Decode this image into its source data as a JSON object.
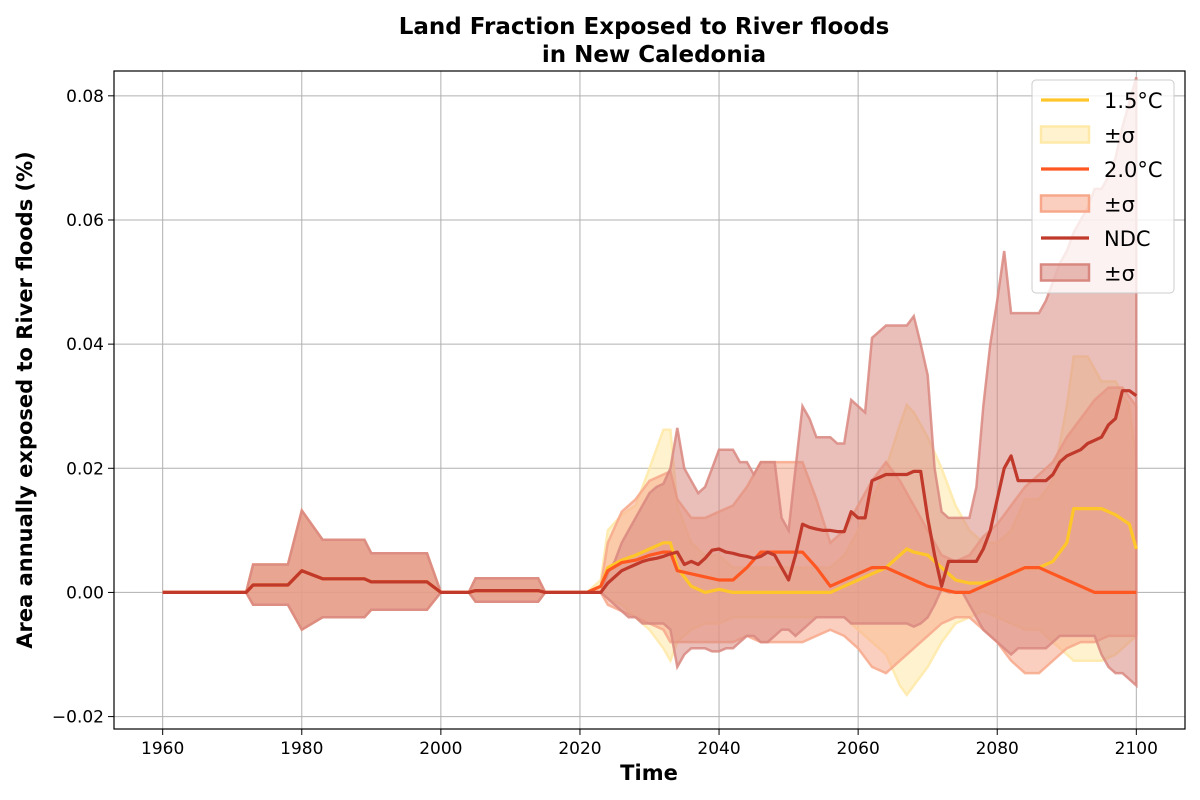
{
  "chart_data": {
    "type": "line",
    "title_line1": "Land Fraction Exposed to River floods",
    "title_line2": "in New Caledonia",
    "xlabel": "Time",
    "ylabel": "Area annually exposed to River floods (%)",
    "xlim": [
      1953,
      2107
    ],
    "ylim": [
      -0.022,
      0.084
    ],
    "x_ticks": [
      1960,
      1980,
      2000,
      2020,
      2040,
      2060,
      2080,
      2100
    ],
    "x_tick_labels": [
      "1960",
      "1980",
      "2000",
      "2020",
      "2040",
      "2060",
      "2080",
      "2100"
    ],
    "y_ticks": [
      -0.02,
      0,
      0.02,
      0.04,
      0.06,
      0.08
    ],
    "y_tick_labels": [
      "−0.02",
      "0.00",
      "0.02",
      "0.04",
      "0.06",
      "0.08"
    ],
    "grid": true,
    "legend_position": "top-right",
    "series": [
      {
        "name": "1.5°C",
        "band_label": "±σ",
        "color": "#FFC629",
        "band_color": "#FFE9A8",
        "x": [
          1960,
          1972,
          1973,
          1978,
          1980,
          1983,
          1989,
          1990,
          1998,
          2000,
          2004,
          2005,
          2014,
          2015,
          2021,
          2023,
          2024,
          2026,
          2028,
          2030,
          2032,
          2033,
          2034,
          2036,
          2038,
          2040,
          2042,
          2044,
          2046,
          2048,
          2050,
          2052,
          2054,
          2056,
          2058,
          2060,
          2062,
          2064,
          2066,
          2067,
          2068,
          2070,
          2072,
          2074,
          2076,
          2078,
          2080,
          2082,
          2084,
          2086,
          2088,
          2090,
          2091,
          2093,
          2095,
          2097,
          2099,
          2100
        ],
        "y": [
          0,
          0,
          0.0012,
          0.0012,
          0.0035,
          0.0022,
          0.0022,
          0.0017,
          0.0017,
          0,
          0,
          0.0003,
          0.0003,
          0,
          0,
          0.001,
          0.004,
          0.0052,
          0.006,
          0.007,
          0.008,
          0.008,
          0.004,
          0.001,
          0,
          0.0005,
          0,
          0,
          0,
          0,
          0,
          0,
          0,
          0,
          0.001,
          0.002,
          0.003,
          0.004,
          0.006,
          0.007,
          0.0065,
          0.006,
          0.004,
          0.002,
          0.0015,
          0.0015,
          0.002,
          0.003,
          0.004,
          0.004,
          0.005,
          0.008,
          0.0135,
          0.0135,
          0.0135,
          0.0125,
          0.011,
          0.007
        ],
        "upper": [
          0,
          0,
          0.0045,
          0.0045,
          0.0132,
          0.0085,
          0.0085,
          0.0063,
          0.0063,
          0,
          0,
          0.0023,
          0.0023,
          0,
          0,
          0.002,
          0.01,
          0.0125,
          0.014,
          0.02,
          0.0262,
          0.0262,
          0.014,
          0.008,
          0.006,
          0.006,
          0.004,
          0.004,
          0.004,
          0.004,
          0.004,
          0.004,
          0.004,
          0.004,
          0.006,
          0.01,
          0.015,
          0.02,
          0.027,
          0.0302,
          0.029,
          0.025,
          0.02,
          0.014,
          0.01,
          0.008,
          0.008,
          0.01,
          0.015,
          0.015,
          0.018,
          0.03,
          0.038,
          0.038,
          0.034,
          0.034,
          0.03,
          0.021
        ],
        "lower": [
          0,
          0,
          -0.002,
          -0.002,
          -0.006,
          -0.004,
          -0.004,
          -0.0028,
          -0.0028,
          0,
          0,
          -0.0015,
          -0.0015,
          0,
          0,
          0,
          -0.001,
          -0.002,
          -0.004,
          -0.006,
          -0.009,
          -0.011,
          -0.008,
          -0.006,
          -0.005,
          -0.005,
          -0.004,
          -0.004,
          -0.004,
          -0.004,
          -0.004,
          -0.004,
          -0.004,
          -0.004,
          -0.004,
          -0.006,
          -0.008,
          -0.01,
          -0.015,
          -0.0165,
          -0.015,
          -0.012,
          -0.008,
          -0.005,
          -0.004,
          -0.003,
          -0.004,
          -0.005,
          -0.006,
          -0.006,
          -0.008,
          -0.01,
          -0.011,
          -0.011,
          -0.011,
          -0.01,
          -0.008,
          -0.007
        ]
      },
      {
        "name": "2.0°C",
        "band_label": "±σ",
        "color": "#FF5722",
        "band_color": "#F7A88B",
        "x": [
          1960,
          1972,
          1973,
          1978,
          1980,
          1983,
          1989,
          1990,
          1998,
          2000,
          2004,
          2005,
          2014,
          2015,
          2021,
          2023,
          2024,
          2026,
          2028,
          2030,
          2032,
          2033,
          2034,
          2036,
          2038,
          2040,
          2042,
          2044,
          2046,
          2048,
          2050,
          2052,
          2054,
          2056,
          2058,
          2060,
          2062,
          2064,
          2066,
          2068,
          2070,
          2072,
          2074,
          2076,
          2078,
          2080,
          2082,
          2084,
          2086,
          2088,
          2090,
          2092,
          2094,
          2096,
          2098,
          2100
        ],
        "y": [
          0,
          0,
          0.0012,
          0.0012,
          0.0035,
          0.0022,
          0.0022,
          0.0017,
          0.0017,
          0,
          0,
          0.0003,
          0.0003,
          0,
          0,
          0.001,
          0.0035,
          0.0048,
          0.0052,
          0.006,
          0.0065,
          0.0065,
          0.0035,
          0.003,
          0.0025,
          0.002,
          0.002,
          0.004,
          0.0065,
          0.0065,
          0.0065,
          0.0065,
          0.004,
          0.001,
          0.002,
          0.003,
          0.004,
          0.004,
          0.003,
          0.002,
          0.001,
          0.0005,
          0,
          0,
          0.001,
          0.002,
          0.003,
          0.004,
          0.004,
          0.003,
          0.002,
          0.001,
          0,
          0,
          0,
          0
        ],
        "upper": [
          0,
          0,
          0.0045,
          0.0045,
          0.0132,
          0.0085,
          0.0085,
          0.0063,
          0.0063,
          0,
          0,
          0.0023,
          0.0023,
          0,
          0,
          0.001,
          0.008,
          0.013,
          0.015,
          0.018,
          0.019,
          0.0195,
          0.015,
          0.012,
          0.012,
          0.013,
          0.014,
          0.017,
          0.021,
          0.021,
          0.021,
          0.021,
          0.015,
          0.008,
          0.01,
          0.014,
          0.018,
          0.021,
          0.018,
          0.014,
          0.01,
          0.006,
          0.005,
          0.006,
          0.009,
          0.011,
          0.014,
          0.017,
          0.019,
          0.021,
          0.025,
          0.028,
          0.031,
          0.033,
          0.033,
          0.03
        ],
        "lower": [
          0,
          0,
          -0.002,
          -0.002,
          -0.006,
          -0.004,
          -0.004,
          -0.0028,
          -0.0028,
          0,
          0,
          -0.0015,
          -0.0015,
          0,
          0,
          0,
          -0.002,
          -0.003,
          -0.004,
          -0.005,
          -0.006,
          -0.008,
          -0.008,
          -0.008,
          -0.008,
          -0.008,
          -0.008,
          -0.007,
          -0.008,
          -0.008,
          -0.008,
          -0.008,
          -0.007,
          -0.006,
          -0.007,
          -0.009,
          -0.012,
          -0.013,
          -0.011,
          -0.009,
          -0.007,
          -0.005,
          -0.004,
          -0.004,
          -0.006,
          -0.008,
          -0.011,
          -0.013,
          -0.013,
          -0.011,
          -0.009,
          -0.008,
          -0.008,
          -0.007,
          -0.007,
          -0.007
        ]
      },
      {
        "name": "NDC",
        "band_label": "±σ",
        "color": "#C0392B",
        "band_color": "#D98880",
        "x": [
          1960,
          1972,
          1973,
          1978,
          1980,
          1983,
          1989,
          1990,
          1998,
          2000,
          2004,
          2005,
          2014,
          2015,
          2021,
          2023,
          2024,
          2025,
          2026,
          2027,
          2028,
          2029,
          2030,
          2031,
          2032,
          2033,
          2034,
          2035,
          2036,
          2037,
          2038,
          2039,
          2040,
          2041,
          2042,
          2043,
          2044,
          2045,
          2046,
          2047,
          2048,
          2049,
          2050,
          2051,
          2052,
          2053,
          2054,
          2055,
          2056,
          2057,
          2058,
          2059,
          2060,
          2061,
          2062,
          2063,
          2064,
          2065,
          2066,
          2067,
          2068,
          2069,
          2070,
          2071,
          2072,
          2073,
          2074,
          2075,
          2076,
          2077,
          2078,
          2079,
          2080,
          2081,
          2082,
          2083,
          2084,
          2085,
          2086,
          2087,
          2088,
          2089,
          2090,
          2091,
          2092,
          2093,
          2094,
          2095,
          2096,
          2097,
          2098,
          2099,
          2100
        ],
        "y": [
          0,
          0,
          0.0012,
          0.0012,
          0.0035,
          0.0022,
          0.0022,
          0.0017,
          0.0017,
          0,
          0,
          0.0003,
          0.0003,
          0,
          0,
          0,
          0.0015,
          0.0025,
          0.0035,
          0.004,
          0.0045,
          0.005,
          0.0053,
          0.0055,
          0.0058,
          0.0062,
          0.0065,
          0.0045,
          0.005,
          0.0045,
          0.0055,
          0.0068,
          0.007,
          0.0065,
          0.0063,
          0.006,
          0.0058,
          0.0055,
          0.0058,
          0.0065,
          0.006,
          0.004,
          0.002,
          0.006,
          0.011,
          0.0105,
          0.0102,
          0.01,
          0.01,
          0.0098,
          0.0098,
          0.013,
          0.012,
          0.012,
          0.018,
          0.0185,
          0.019,
          0.019,
          0.019,
          0.019,
          0.0195,
          0.0195,
          0.012,
          0.006,
          0.001,
          0.005,
          0.005,
          0.005,
          0.005,
          0.005,
          0.007,
          0.01,
          0.015,
          0.02,
          0.022,
          0.018,
          0.018,
          0.018,
          0.018,
          0.018,
          0.019,
          0.021,
          0.022,
          0.0225,
          0.023,
          0.024,
          0.0245,
          0.025,
          0.027,
          0.028,
          0.0325,
          0.0325,
          0.0317
        ],
        "upper": [
          0,
          0,
          0.0045,
          0.0045,
          0.0132,
          0.0085,
          0.0085,
          0.0063,
          0.0063,
          0,
          0,
          0.0023,
          0.0023,
          0,
          0,
          0,
          0.003,
          0.005,
          0.008,
          0.01,
          0.012,
          0.014,
          0.016,
          0.017,
          0.0175,
          0.02,
          0.0265,
          0.02,
          0.018,
          0.016,
          0.017,
          0.02,
          0.023,
          0.023,
          0.023,
          0.021,
          0.021,
          0.019,
          0.021,
          0.021,
          0.021,
          0.012,
          0.01,
          0.02,
          0.03,
          0.028,
          0.025,
          0.025,
          0.025,
          0.024,
          0.024,
          0.031,
          0.03,
          0.029,
          0.041,
          0.042,
          0.043,
          0.043,
          0.043,
          0.043,
          0.0445,
          0.04,
          0.035,
          0.02,
          0.013,
          0.012,
          0.012,
          0.012,
          0.012,
          0.017,
          0.03,
          0.04,
          0.047,
          0.055,
          0.045,
          0.045,
          0.045,
          0.045,
          0.045,
          0.047,
          0.05,
          0.053,
          0.055,
          0.058,
          0.06,
          0.062,
          0.065,
          0.065,
          0.067,
          0.07,
          0.075,
          0.079,
          0.083
        ],
        "lower": [
          0,
          0,
          -0.002,
          -0.002,
          -0.006,
          -0.004,
          -0.004,
          -0.0028,
          -0.0028,
          0,
          0,
          -0.0015,
          -0.0015,
          0,
          0,
          0,
          -0.001,
          -0.002,
          -0.003,
          -0.004,
          -0.004,
          -0.005,
          -0.005,
          -0.005,
          -0.005,
          -0.006,
          -0.012,
          -0.01,
          -0.009,
          -0.009,
          -0.009,
          -0.0095,
          -0.0095,
          -0.009,
          -0.009,
          -0.008,
          -0.007,
          -0.007,
          -0.008,
          -0.008,
          -0.007,
          -0.006,
          -0.006,
          -0.007,
          -0.006,
          -0.005,
          -0.004,
          -0.004,
          -0.004,
          -0.004,
          -0.004,
          -0.005,
          -0.005,
          -0.005,
          -0.005,
          -0.005,
          -0.005,
          -0.005,
          -0.005,
          -0.005,
          -0.0055,
          -0.005,
          -0.004,
          -0.002,
          0.0005,
          0,
          0,
          0,
          -0.002,
          -0.004,
          -0.006,
          -0.007,
          -0.008,
          -0.009,
          -0.01,
          -0.009,
          -0.009,
          -0.009,
          -0.009,
          -0.009,
          -0.008,
          -0.007,
          -0.007,
          -0.007,
          -0.007,
          -0.007,
          -0.007,
          -0.01,
          -0.012,
          -0.013,
          -0.013,
          -0.014,
          -0.015
        ]
      }
    ]
  }
}
